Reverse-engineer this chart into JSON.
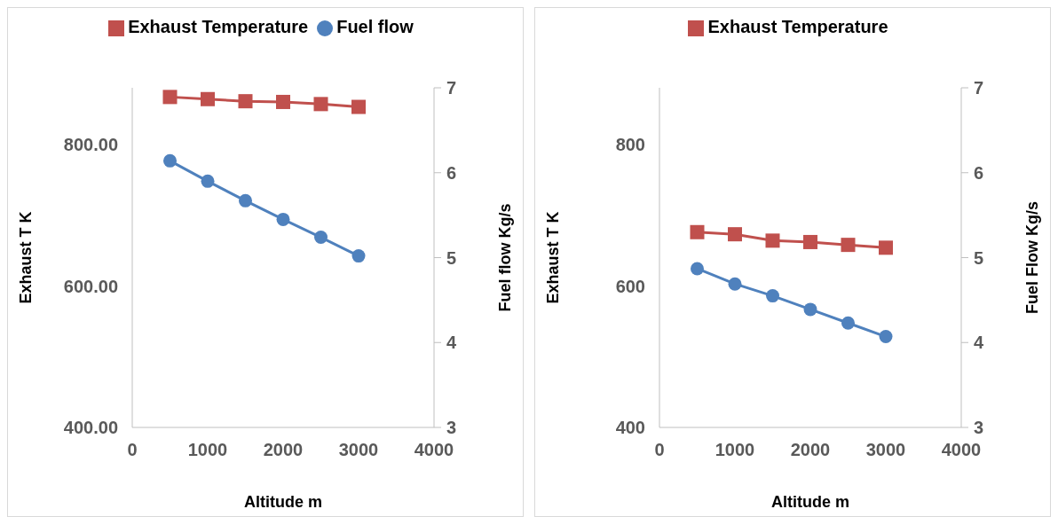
{
  "chart_data": [
    {
      "type": "line",
      "xlabel": "Altitude m",
      "ylabel": "Exhaust T K",
      "y2label": "Fuel flow Kg/s",
      "x": [
        500,
        1000,
        1500,
        2000,
        2500,
        3000
      ],
      "xlim": [
        0,
        4000
      ],
      "xticks": [
        0,
        1000,
        2000,
        3000,
        4000
      ],
      "ylim": [
        400,
        880
      ],
      "yticks": [
        {
          "value": 400,
          "label": "400.00"
        },
        {
          "value": 600,
          "label": "600.00"
        },
        {
          "value": 800,
          "label": "800.00"
        }
      ],
      "y2lim": [
        3,
        7
      ],
      "y2ticks": [
        3,
        4,
        5,
        6,
        7
      ],
      "legend": "top",
      "grid": false,
      "series": [
        {
          "name": "Exhaust Temperature",
          "color": "#c0504d",
          "marker": "square",
          "values": [
            867,
            864,
            861,
            860,
            857,
            853
          ]
        },
        {
          "name": "Fuel flow",
          "color": "#4f81bd",
          "marker": "circle",
          "axis": "y2",
          "values": [
            6.14,
            5.9,
            5.67,
            5.45,
            5.24,
            5.02
          ]
        }
      ]
    },
    {
      "type": "line",
      "xlabel": "Altitude m",
      "ylabel": "Exhaust T K",
      "y2label": "Fuel Flow Kg/s",
      "x": [
        500,
        1000,
        1500,
        2000,
        2500,
        3000
      ],
      "xlim": [
        0,
        4000
      ],
      "xticks": [
        0,
        1000,
        2000,
        3000,
        4000
      ],
      "ylim": [
        400,
        880
      ],
      "yticks": [
        400,
        600,
        800
      ],
      "y2lim": [
        3,
        7
      ],
      "y2ticks": [
        3,
        4,
        5,
        6,
        7
      ],
      "legend": "top",
      "grid": false,
      "series": [
        {
          "name": "Exhaust Temperature",
          "color": "#c0504d",
          "marker": "square",
          "values": [
            676,
            673,
            664,
            662,
            658,
            654
          ]
        },
        {
          "color": "#4f81bd",
          "marker": "circle",
          "axis": "y2",
          "values": [
            4.87,
            4.69,
            4.55,
            4.39,
            4.23,
            4.07
          ]
        }
      ]
    }
  ]
}
